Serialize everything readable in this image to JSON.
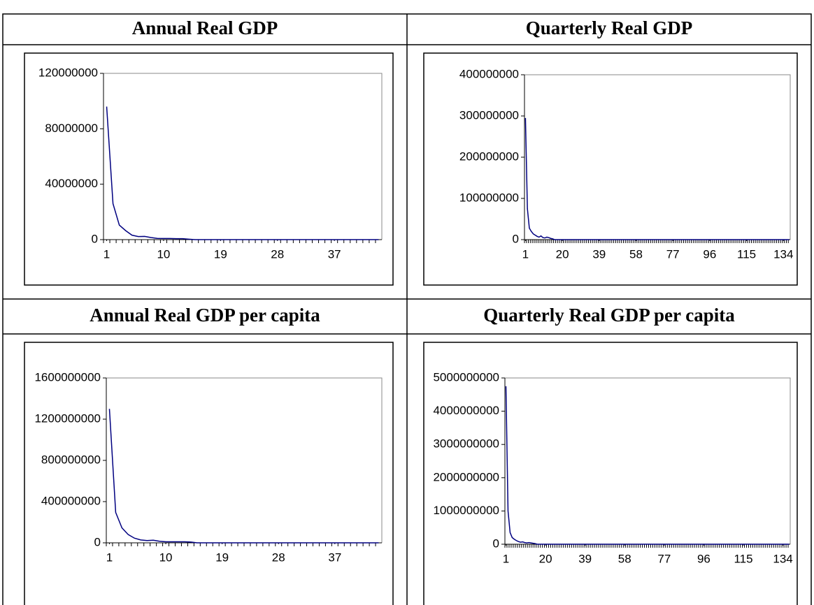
{
  "chart_data": [
    {
      "type": "line",
      "title": "Annual Real GDP",
      "color": "#000080",
      "x": [
        1,
        2,
        3,
        4,
        5,
        6,
        7,
        8,
        9,
        10,
        11,
        12,
        13,
        14,
        15,
        16,
        17,
        18,
        19,
        20,
        21,
        22,
        23,
        24,
        25,
        26,
        27,
        28,
        29,
        30,
        31,
        32,
        33,
        34,
        35,
        36,
        37,
        38,
        39,
        40,
        41,
        42,
        43,
        44
      ],
      "values": [
        96000000,
        26000000,
        10500000,
        6500000,
        3200000,
        2200000,
        2300000,
        1500000,
        900000,
        800000,
        800000,
        700000,
        700000,
        300000,
        0,
        0,
        0,
        0,
        0,
        0,
        0,
        0,
        0,
        0,
        0,
        0,
        0,
        0,
        0,
        0,
        0,
        0,
        0,
        0,
        0,
        0,
        0,
        0,
        0,
        0,
        0,
        0,
        0,
        0
      ],
      "xlim": [
        0.5,
        44.5
      ],
      "xticks": [
        1,
        10,
        19,
        28,
        37
      ],
      "ylim": [
        0,
        120000000
      ],
      "yticks": [
        0,
        40000000,
        80000000,
        120000000
      ]
    },
    {
      "type": "line",
      "title": "Quarterly Real GDP",
      "color": "#000080",
      "x": [
        1,
        2,
        3,
        4,
        5,
        6,
        7,
        8,
        9,
        10,
        11,
        12,
        13,
        14,
        15,
        16,
        17,
        18,
        19,
        20,
        21,
        22,
        23,
        24,
        25,
        26,
        27,
        28,
        29,
        30,
        31,
        32,
        33,
        34,
        35,
        36,
        37,
        38,
        39,
        40,
        41,
        42,
        43,
        44,
        45,
        46,
        47,
        48,
        49,
        50,
        51,
        52,
        53,
        54,
        55,
        56,
        57,
        58,
        59,
        60,
        61,
        62,
        63,
        64,
        65,
        66,
        67,
        68,
        69,
        70,
        71,
        72,
        73,
        74,
        75,
        76,
        77,
        78,
        79,
        80,
        81,
        82,
        83,
        84,
        85,
        86,
        87,
        88,
        89,
        90,
        91,
        92,
        93,
        94,
        95,
        96,
        97,
        98,
        99,
        100,
        101,
        102,
        103,
        104,
        105,
        106,
        107,
        108,
        109,
        110,
        111,
        112,
        113,
        114,
        115,
        116,
        117,
        118,
        119,
        120,
        121,
        122,
        123,
        124,
        125,
        126,
        127,
        128,
        129,
        130,
        131,
        132,
        133,
        134,
        135,
        136,
        137
      ],
      "values": [
        295000000,
        75000000,
        28000000,
        20000000,
        14000000,
        11000000,
        8000000,
        6000000,
        9000000,
        5000000,
        4000000,
        6000000,
        5000000,
        3000000,
        2000000,
        0,
        0,
        0,
        0,
        0,
        0,
        0,
        0,
        0,
        0,
        0,
        0,
        0,
        0,
        0,
        0,
        0,
        0,
        0,
        0,
        0,
        0,
        0,
        0,
        0,
        0,
        0,
        0,
        0,
        0,
        0,
        0,
        0,
        0,
        0,
        0,
        0,
        0,
        0,
        0,
        0,
        0,
        0,
        0,
        0,
        0,
        0,
        0,
        0,
        0,
        0,
        0,
        0,
        0,
        0,
        0,
        0,
        0,
        0,
        0,
        0,
        0,
        0,
        0,
        0,
        0,
        0,
        0,
        0,
        0,
        0,
        0,
        0,
        0,
        0,
        0,
        0,
        0,
        0,
        0,
        0,
        0,
        0,
        0,
        0,
        0,
        0,
        0,
        0,
        0,
        0,
        0,
        0,
        0,
        0,
        0,
        0,
        0,
        0,
        0,
        0,
        0,
        0,
        0,
        0,
        0,
        0,
        0,
        0,
        0,
        0,
        0,
        0,
        0,
        0,
        0,
        0,
        0,
        0,
        0,
        0,
        0
      ],
      "xlim": [
        0.5,
        137.5
      ],
      "xticks": [
        1,
        20,
        39,
        58,
        77,
        96,
        115,
        134
      ],
      "ylim": [
        0,
        400000000
      ],
      "yticks": [
        0,
        100000000,
        200000000,
        300000000,
        400000000
      ]
    },
    {
      "type": "line",
      "title": "Annual Real GDP per capita",
      "color": "#000080",
      "x": [
        1,
        2,
        3,
        4,
        5,
        6,
        7,
        8,
        9,
        10,
        11,
        12,
        13,
        14,
        15,
        16,
        17,
        18,
        19,
        20,
        21,
        22,
        23,
        24,
        25,
        26,
        27,
        28,
        29,
        30,
        31,
        32,
        33,
        34,
        35,
        36,
        37,
        38,
        39,
        40,
        41,
        42,
        43,
        44
      ],
      "values": [
        1300000000,
        295000000,
        145000000,
        80000000,
        45000000,
        28000000,
        22000000,
        25000000,
        15000000,
        10000000,
        10000000,
        10000000,
        10000000,
        8000000,
        0,
        0,
        0,
        0,
        0,
        0,
        0,
        0,
        0,
        0,
        0,
        0,
        0,
        0,
        0,
        0,
        0,
        0,
        0,
        0,
        0,
        0,
        0,
        0,
        0,
        0,
        0,
        0,
        0,
        0
      ],
      "xlim": [
        0.5,
        44.5
      ],
      "xticks": [
        1,
        10,
        19,
        28,
        37
      ],
      "ylim": [
        0,
        1600000000
      ],
      "yticks": [
        0,
        400000000,
        800000000,
        1200000000,
        1600000000
      ]
    },
    {
      "type": "line",
      "title": "Quarterly Real GDP per capita",
      "color": "#000080",
      "x": [
        1,
        2,
        3,
        4,
        5,
        6,
        7,
        8,
        9,
        10,
        11,
        12,
        13,
        14,
        15,
        16,
        17,
        18,
        19,
        20,
        21,
        22,
        23,
        24,
        25,
        26,
        27,
        28,
        29,
        30,
        31,
        32,
        33,
        34,
        35,
        36,
        37,
        38,
        39,
        40,
        41,
        42,
        43,
        44,
        45,
        46,
        47,
        48,
        49,
        50,
        51,
        52,
        53,
        54,
        55,
        56,
        57,
        58,
        59,
        60,
        61,
        62,
        63,
        64,
        65,
        66,
        67,
        68,
        69,
        70,
        71,
        72,
        73,
        74,
        75,
        76,
        77,
        78,
        79,
        80,
        81,
        82,
        83,
        84,
        85,
        86,
        87,
        88,
        89,
        90,
        91,
        92,
        93,
        94,
        95,
        96,
        97,
        98,
        99,
        100,
        101,
        102,
        103,
        104,
        105,
        106,
        107,
        108,
        109,
        110,
        111,
        112,
        113,
        114,
        115,
        116,
        117,
        118,
        119,
        120,
        121,
        122,
        123,
        124,
        125,
        126,
        127,
        128,
        129,
        130,
        131,
        132,
        133,
        134,
        135,
        136,
        137
      ],
      "values": [
        4750000000,
        1000000000,
        350000000,
        200000000,
        150000000,
        110000000,
        80000000,
        60000000,
        70000000,
        50000000,
        40000000,
        50000000,
        40000000,
        30000000,
        20000000,
        0,
        0,
        0,
        0,
        0,
        0,
        0,
        0,
        0,
        0,
        0,
        0,
        0,
        0,
        0,
        0,
        0,
        0,
        0,
        0,
        0,
        0,
        0,
        0,
        0,
        0,
        0,
        0,
        0,
        0,
        0,
        0,
        0,
        0,
        0,
        0,
        0,
        0,
        0,
        0,
        0,
        0,
        0,
        0,
        0,
        0,
        0,
        0,
        0,
        0,
        0,
        0,
        0,
        0,
        0,
        0,
        0,
        0,
        0,
        0,
        0,
        0,
        0,
        0,
        0,
        0,
        0,
        0,
        0,
        0,
        0,
        0,
        0,
        0,
        0,
        0,
        0,
        0,
        0,
        0,
        0,
        0,
        0,
        0,
        0,
        0,
        0,
        0,
        0,
        0,
        0,
        0,
        0,
        0,
        0,
        0,
        0,
        0,
        0,
        0,
        0,
        0,
        0,
        0,
        0,
        0,
        0,
        0,
        0,
        0,
        0,
        0,
        0,
        0,
        0,
        0,
        0,
        0,
        0,
        0,
        0,
        0
      ],
      "xlim": [
        0.5,
        137.5
      ],
      "xticks": [
        1,
        20,
        39,
        58,
        77,
        96,
        115,
        134
      ],
      "ylim": [
        0,
        5000000000
      ],
      "yticks": [
        0,
        1000000000,
        2000000000,
        3000000000,
        4000000000,
        5000000000
      ]
    }
  ]
}
